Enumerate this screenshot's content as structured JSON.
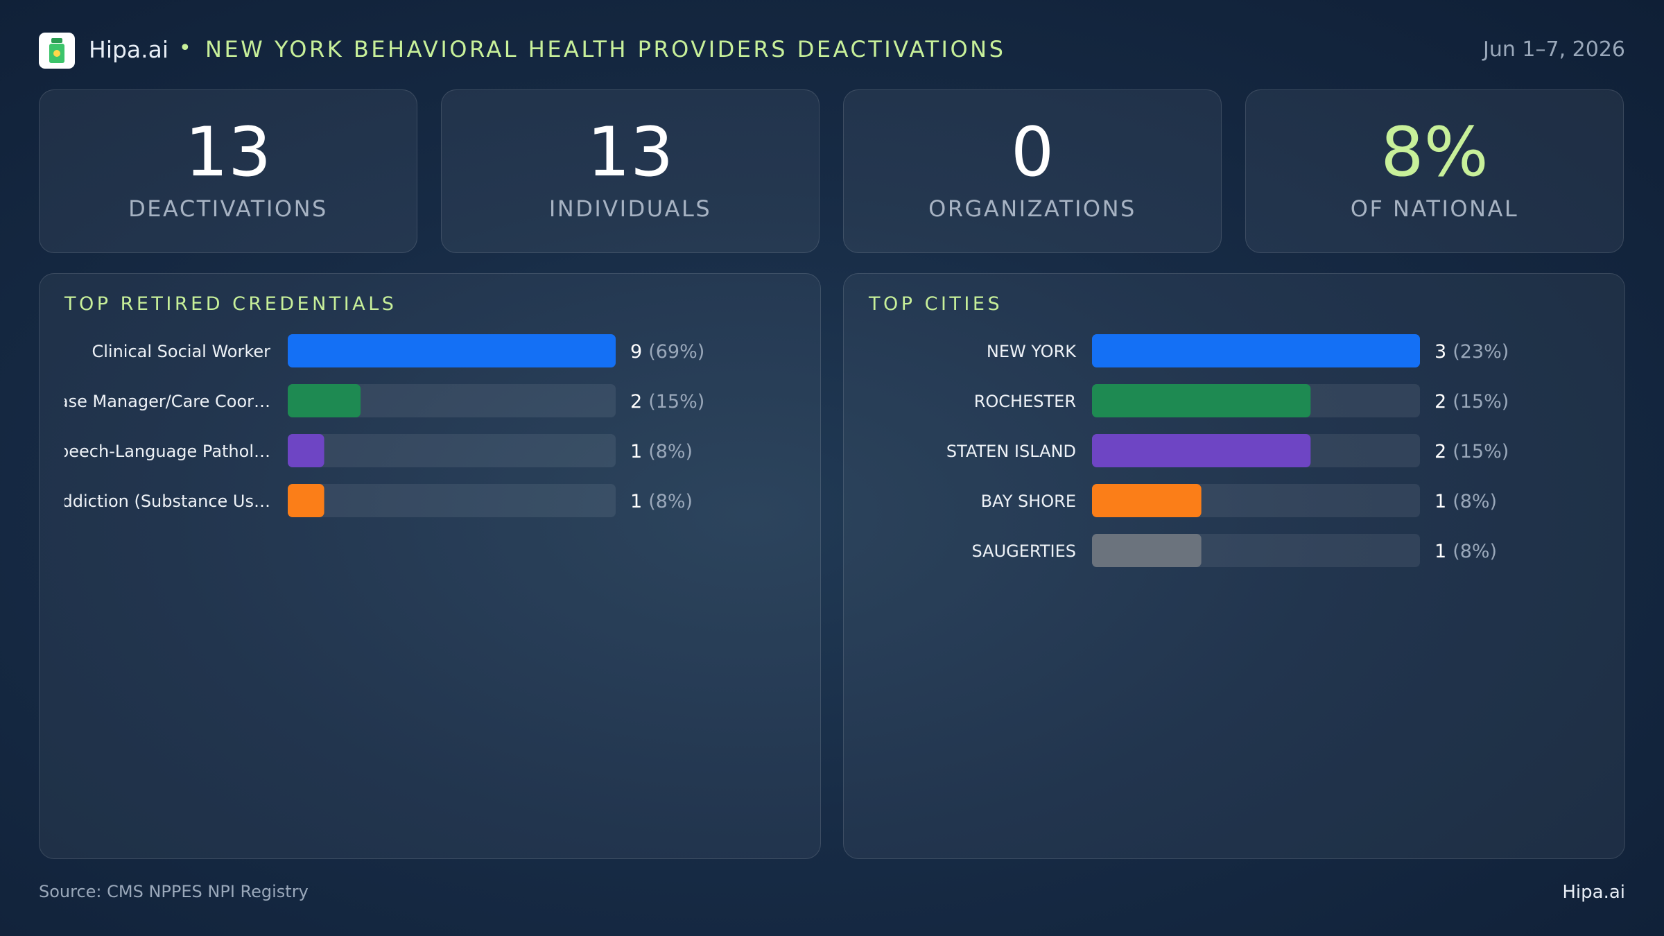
{
  "header": {
    "brand": "Hipa.ai",
    "title": "NEW YORK BEHAVIORAL HEALTH PROVIDERS DEACTIVATIONS",
    "date": "Jun 1–7, 2026"
  },
  "kpis": [
    {
      "value": "13",
      "label": "DEACTIVATIONS"
    },
    {
      "value": "13",
      "label": "INDIVIDUALS"
    },
    {
      "value": "0",
      "label": "ORGANIZATIONS"
    },
    {
      "value": "8%",
      "label": "OF NATIONAL"
    }
  ],
  "chart_data": [
    {
      "type": "bar",
      "orientation": "horizontal",
      "title": "TOP RETIRED CREDENTIALS",
      "categories": [
        "Clinical Social Worker",
        "Case Manager/Care Coor…",
        "Speech-Language Pathol…",
        "Addiction (Substance Us…"
      ],
      "values": [
        9,
        2,
        1,
        1
      ],
      "share_labels": [
        "(69%)",
        "(15%)",
        "(8%)",
        "(8%)"
      ],
      "colors": [
        "#1470f5",
        "#1e8a52",
        "#6e45c4",
        "#fb7e18"
      ]
    },
    {
      "type": "bar",
      "orientation": "horizontal",
      "title": "TOP CITIES",
      "categories": [
        "NEW YORK",
        "ROCHESTER",
        "STATEN ISLAND",
        "BAY SHORE",
        "SAUGERTIES"
      ],
      "values": [
        3,
        2,
        2,
        1,
        1
      ],
      "share_labels": [
        "(23%)",
        "(15%)",
        "(15%)",
        "(8%)",
        "(8%)"
      ],
      "colors": [
        "#1470f5",
        "#1e8a52",
        "#6e45c4",
        "#fb7e18",
        "#6b737d"
      ]
    }
  ],
  "footer": {
    "source": "Source: CMS NPPES NPI Registry",
    "brand": "Hipa.ai"
  }
}
